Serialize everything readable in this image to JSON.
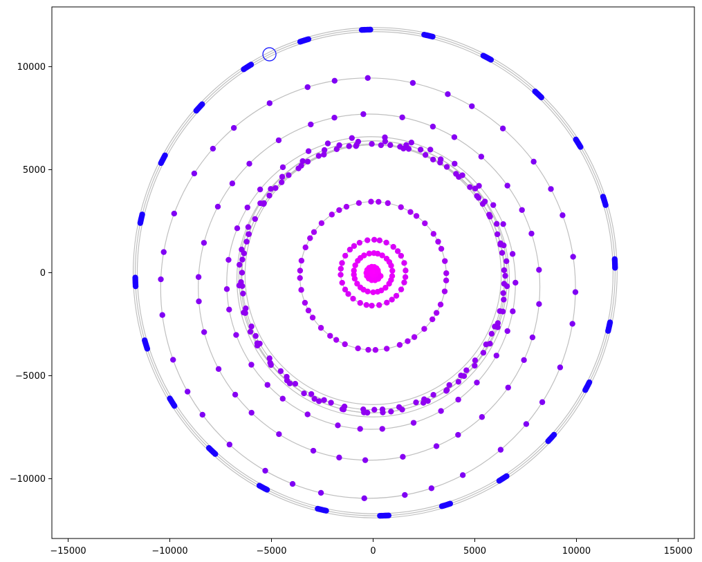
{
  "chart_data": {
    "type": "scatter",
    "title": "",
    "xlabel": "",
    "ylabel": "",
    "xlim": [
      -15800,
      15800
    ],
    "ylim": [
      -12900,
      12900
    ],
    "x_ticks": [
      -15000,
      -10000,
      -5000,
      0,
      5000,
      10000,
      15000
    ],
    "x_tick_labels": [
      "−15000",
      "−10000",
      "−5000",
      "0",
      "5000",
      "10000",
      "15000"
    ],
    "y_ticks": [
      10000,
      5000,
      0,
      -5000,
      -10000
    ],
    "y_tick_labels": [
      "10000",
      "5000",
      "0",
      "−5000",
      "−10000"
    ],
    "grid": false,
    "spiral": {
      "rings": [
        {
          "center": [
            0,
            0
          ],
          "radii": [
            350,
            950,
            1600
          ]
        },
        {
          "center": [
            0,
            -150
          ],
          "radii": [
            3600
          ]
        },
        {
          "center": [
            0,
            -200
          ],
          "radii": [
            6450,
            6600
          ]
        },
        {
          "center": [
            -100,
            -500
          ],
          "radii": [
            7100
          ]
        },
        {
          "center": [
            -200,
            -700
          ],
          "radii": [
            8400
          ]
        },
        {
          "center": [
            -250,
            -750
          ],
          "radii": [
            10200
          ]
        },
        {
          "center": [
            100,
            0
          ],
          "radii": [
            11700,
            11800,
            11900
          ]
        }
      ],
      "wander_rings": [
        {
          "center": [
            0,
            -300
          ],
          "radii": [
            6500,
            6700
          ]
        },
        {
          "center": [
            0,
            -100
          ],
          "radii": [
            6300
          ]
        }
      ]
    },
    "marker_colors": {
      "inner": "#ff00ff",
      "middle": "#9b00f0",
      "outer": "#1a00ff"
    },
    "line_color": "#bfbfbf",
    "highlight": {
      "x": -5100,
      "y": 10600,
      "color": "#1a1aff"
    }
  }
}
